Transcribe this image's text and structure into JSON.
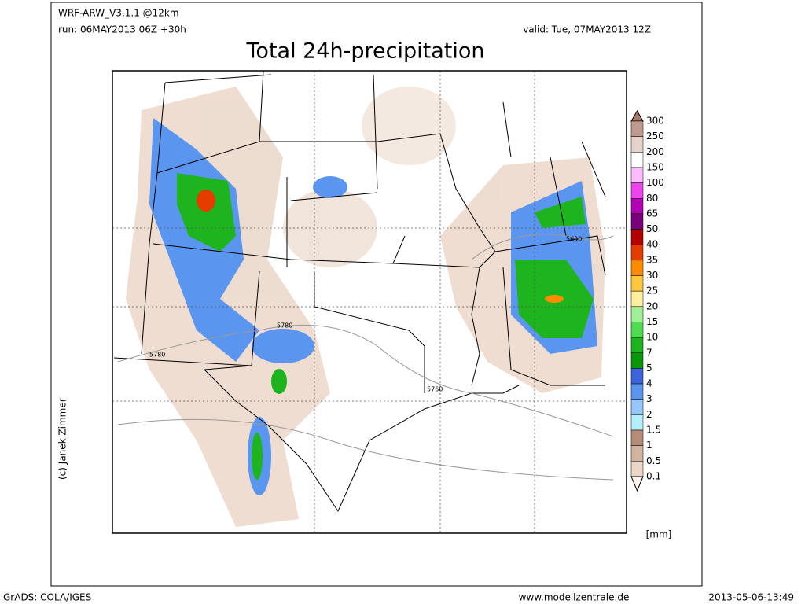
{
  "header": {
    "model": "WRF-ARW_V3.1.1 @12km",
    "run": "run: 06MAY2013 06Z +30h",
    "valid": "valid: Tue, 07MAY2013 12Z",
    "title": "Total 24h-precipitation"
  },
  "contour_labels": [
    "5780",
    "5780",
    "5760",
    "5600"
  ],
  "colorbar": {
    "unit": "[mm]",
    "top_color": "#a57a6b",
    "items": [
      {
        "label": "300",
        "color": "#bf9c8f"
      },
      {
        "label": "250",
        "color": "#e6d4cc"
      },
      {
        "label": "200",
        "color": "#ffffff"
      },
      {
        "label": "150",
        "color": "#ffbbff"
      },
      {
        "label": "100",
        "color": "#ee44ee"
      },
      {
        "label": "80",
        "color": "#b400b4"
      },
      {
        "label": "65",
        "color": "#78007a"
      },
      {
        "label": "50",
        "color": "#b40000"
      },
      {
        "label": "40",
        "color": "#e63c00"
      },
      {
        "label": "35",
        "color": "#ff8c00"
      },
      {
        "label": "30",
        "color": "#ffc83c"
      },
      {
        "label": "25",
        "color": "#fff0a0"
      },
      {
        "label": "20",
        "color": "#a0f096"
      },
      {
        "label": "15",
        "color": "#50dc50"
      },
      {
        "label": "10",
        "color": "#1eb41e"
      },
      {
        "label": "7",
        "color": "#0a960a"
      },
      {
        "label": "5",
        "color": "#3c64dc"
      },
      {
        "label": "4",
        "color": "#5a96f0"
      },
      {
        "label": "3",
        "color": "#96c8ff"
      },
      {
        "label": "2",
        "color": "#b4f0fa"
      },
      {
        "label": "1.5",
        "color": "#b48c78"
      },
      {
        "label": "1",
        "color": "#d2b4a0"
      },
      {
        "label": "0.5",
        "color": "#ebd7c8"
      },
      {
        "label": "0.1",
        "color": "#fbf0ea"
      }
    ]
  },
  "credit": "(c) Janek Zimmer",
  "footer": {
    "left": "GrADS: COLA/IGES",
    "center": "www.modellzentrale.de",
    "right": "2013-05-06-13:49"
  }
}
